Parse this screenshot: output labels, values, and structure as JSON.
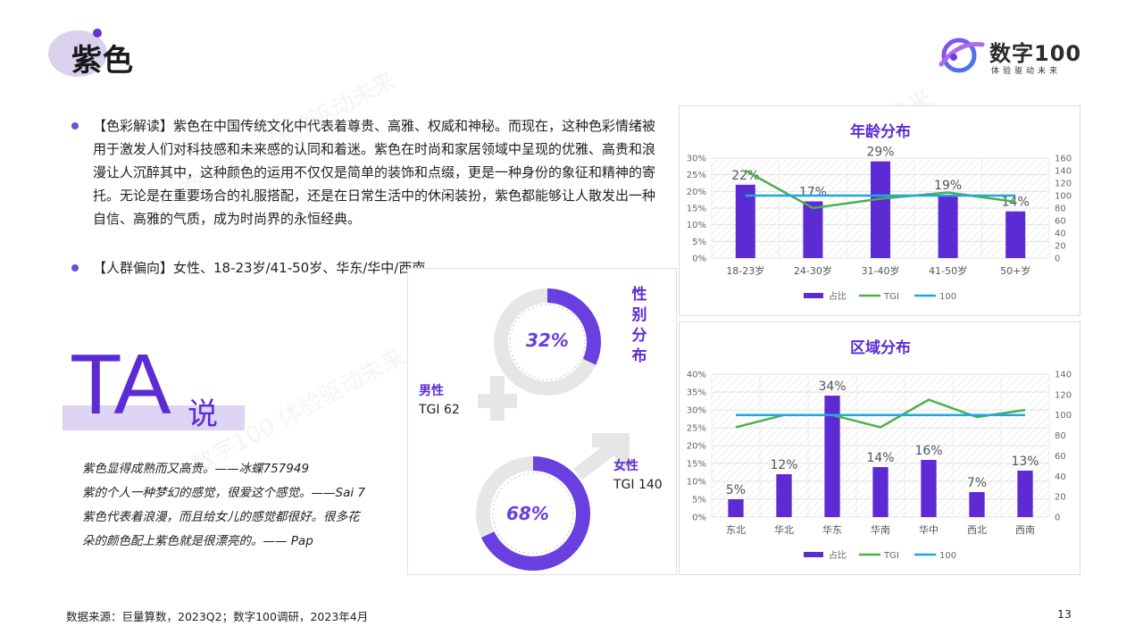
{
  "header": {
    "title": "紫色"
  },
  "logo": {
    "name": "数字100",
    "tagline": "体验驱动未来"
  },
  "paragraphs": [
    "【色彩解读】紫色在中国传统文化中代表着尊贵、高雅、权威和神秘。而现在，这种色彩情绪被用于激发人们对科技感和未来感的认同和着迷。紫色在时尚和家居领域中呈现的优雅、高贵和浪漫让人沉醉其中，这种颜色的运用不仅仅是简单的装饰和点缀，更是一种身份的象征和精神的寄托。无论是在重要场合的礼服搭配，还是在日常生活中的休闲装扮，紫色都能够让人散发出一种自信、高雅的气质，成为时尚界的永恒经典。",
    "【人群偏向】女性、18-23岁/41-50岁、华东/华中/西南。"
  ],
  "ta": {
    "big": "TA",
    "small": "说"
  },
  "quotes": [
    "紫色显得成熟而又高贵。——冰蝶757949",
    "紫的个人一种梦幻的感觉，很爱这个感觉。——Sai 7",
    "紫色代表着浪漫，而且给女儿的感觉都很好。很多花",
    "朵的颜色配上紫色就是很漂亮的。—— Pap"
  ],
  "gender": {
    "title": "性别分布",
    "male": {
      "label": "男性",
      "tgi": "TGI 62",
      "percent_text": "32%",
      "share": 0.32
    },
    "female": {
      "label": "女性",
      "tgi": "TGI 140",
      "percent_text": "68%",
      "share": 0.68
    }
  },
  "chart_data": [
    {
      "type": "bar",
      "title": "年龄分布",
      "categories": [
        "18-23岁",
        "24-30岁",
        "31-40岁",
        "41-50岁",
        "50+岁"
      ],
      "series": [
        {
          "name": "占比",
          "type": "bar",
          "values": [
            22,
            17,
            29,
            19,
            14
          ],
          "labels": [
            "22%",
            "17%",
            "29%",
            "19%",
            "14%"
          ]
        },
        {
          "name": "TGI",
          "type": "line",
          "values": [
            140,
            80,
            95,
            105,
            90
          ]
        },
        {
          "name": "100",
          "type": "line",
          "values": [
            100,
            100,
            100,
            100,
            100
          ]
        }
      ],
      "y_left": {
        "ticks": [
          "0%",
          "5%",
          "10%",
          "15%",
          "20%",
          "25%",
          "30%"
        ],
        "max": 30
      },
      "y_right": {
        "ticks": [
          "0",
          "20",
          "40",
          "60",
          "80",
          "100",
          "120",
          "140",
          "160"
        ],
        "max": 160
      },
      "legend": [
        "占比",
        "TGI",
        "100"
      ],
      "legend_position": "bottom"
    },
    {
      "type": "bar",
      "title": "区域分布",
      "categories": [
        "东北",
        "华北",
        "华东",
        "华南",
        "华中",
        "西北",
        "西南"
      ],
      "series": [
        {
          "name": "占比",
          "type": "bar",
          "values": [
            5,
            12,
            34,
            14,
            16,
            7,
            13
          ],
          "labels": [
            "5%",
            "12%",
            "34%",
            "14%",
            "16%",
            "7%",
            "13%"
          ]
        },
        {
          "name": "TGI",
          "type": "line",
          "values": [
            88,
            100,
            100,
            88,
            115,
            98,
            105
          ]
        },
        {
          "name": "100",
          "type": "line",
          "values": [
            100,
            100,
            100,
            100,
            100,
            100,
            100
          ]
        }
      ],
      "y_left": {
        "ticks": [
          "0%",
          "5%",
          "10%",
          "15%",
          "20%",
          "25%",
          "30%",
          "35%",
          "40%"
        ],
        "max": 40
      },
      "y_right": {
        "ticks": [
          "0",
          "20",
          "40",
          "60",
          "80",
          "100",
          "120",
          "140"
        ],
        "max": 140
      },
      "legend": [
        "占比",
        "TGI",
        "100"
      ],
      "legend_position": "bottom"
    }
  ],
  "footer": {
    "source": "数据来源：巨量算数，2023Q2；数字100调研，2023年4月",
    "page": "13"
  },
  "watermark": "数字100 体验驱动未来",
  "colors": {
    "bar": "#5c2bd3",
    "tgi": "#4caf50",
    "baseline": "#1fa8e0",
    "accent": "#6a3fe0"
  }
}
